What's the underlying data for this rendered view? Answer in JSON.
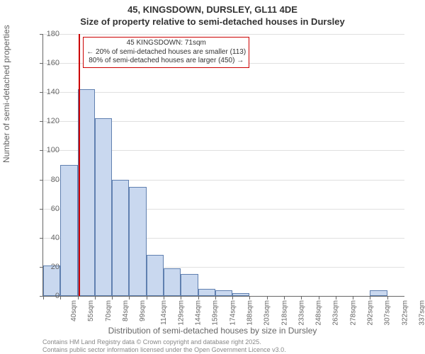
{
  "title_line1": "45, KINGSDOWN, DURSLEY, GL11 4DE",
  "title_line2": "Size of property relative to semi-detached houses in Dursley",
  "y_axis_label": "Number of semi-detached properties",
  "x_axis_label": "Distribution of semi-detached houses by size in Dursley",
  "chart": {
    "type": "histogram",
    "ylim": [
      0,
      180
    ],
    "ytick_step": 20,
    "background_color": "#ffffff",
    "grid_color": "#e0e0e0",
    "axis_color": "#666666",
    "bar_fill": "#c9d8ef",
    "bar_border": "#6080b0",
    "marker_color": "#cc0000",
    "annotation_border": "#cc0000",
    "categories": [
      "40sqm",
      "55sqm",
      "70sqm",
      "84sqm",
      "99sqm",
      "114sqm",
      "129sqm",
      "144sqm",
      "159sqm",
      "174sqm",
      "188sqm",
      "203sqm",
      "218sqm",
      "233sqm",
      "248sqm",
      "263sqm",
      "278sqm",
      "292sqm",
      "307sqm",
      "322sqm",
      "337sqm"
    ],
    "values": [
      21,
      90,
      142,
      122,
      80,
      75,
      28,
      19,
      15,
      5,
      4,
      2,
      0,
      0,
      0,
      0,
      0,
      0,
      0,
      4,
      0
    ],
    "marker_bin_index": 2,
    "marker_fraction_in_bin": 0.07,
    "annotation": {
      "line1": "45 KINGSDOWN: 71sqm",
      "line2": "← 20% of semi-detached houses are smaller (113)",
      "line3": "80% of semi-detached houses are larger (450) →"
    }
  },
  "footer_line1": "Contains HM Land Registry data © Crown copyright and database right 2025.",
  "footer_line2": "Contains public sector information licensed under the Open Government Licence v3.0."
}
